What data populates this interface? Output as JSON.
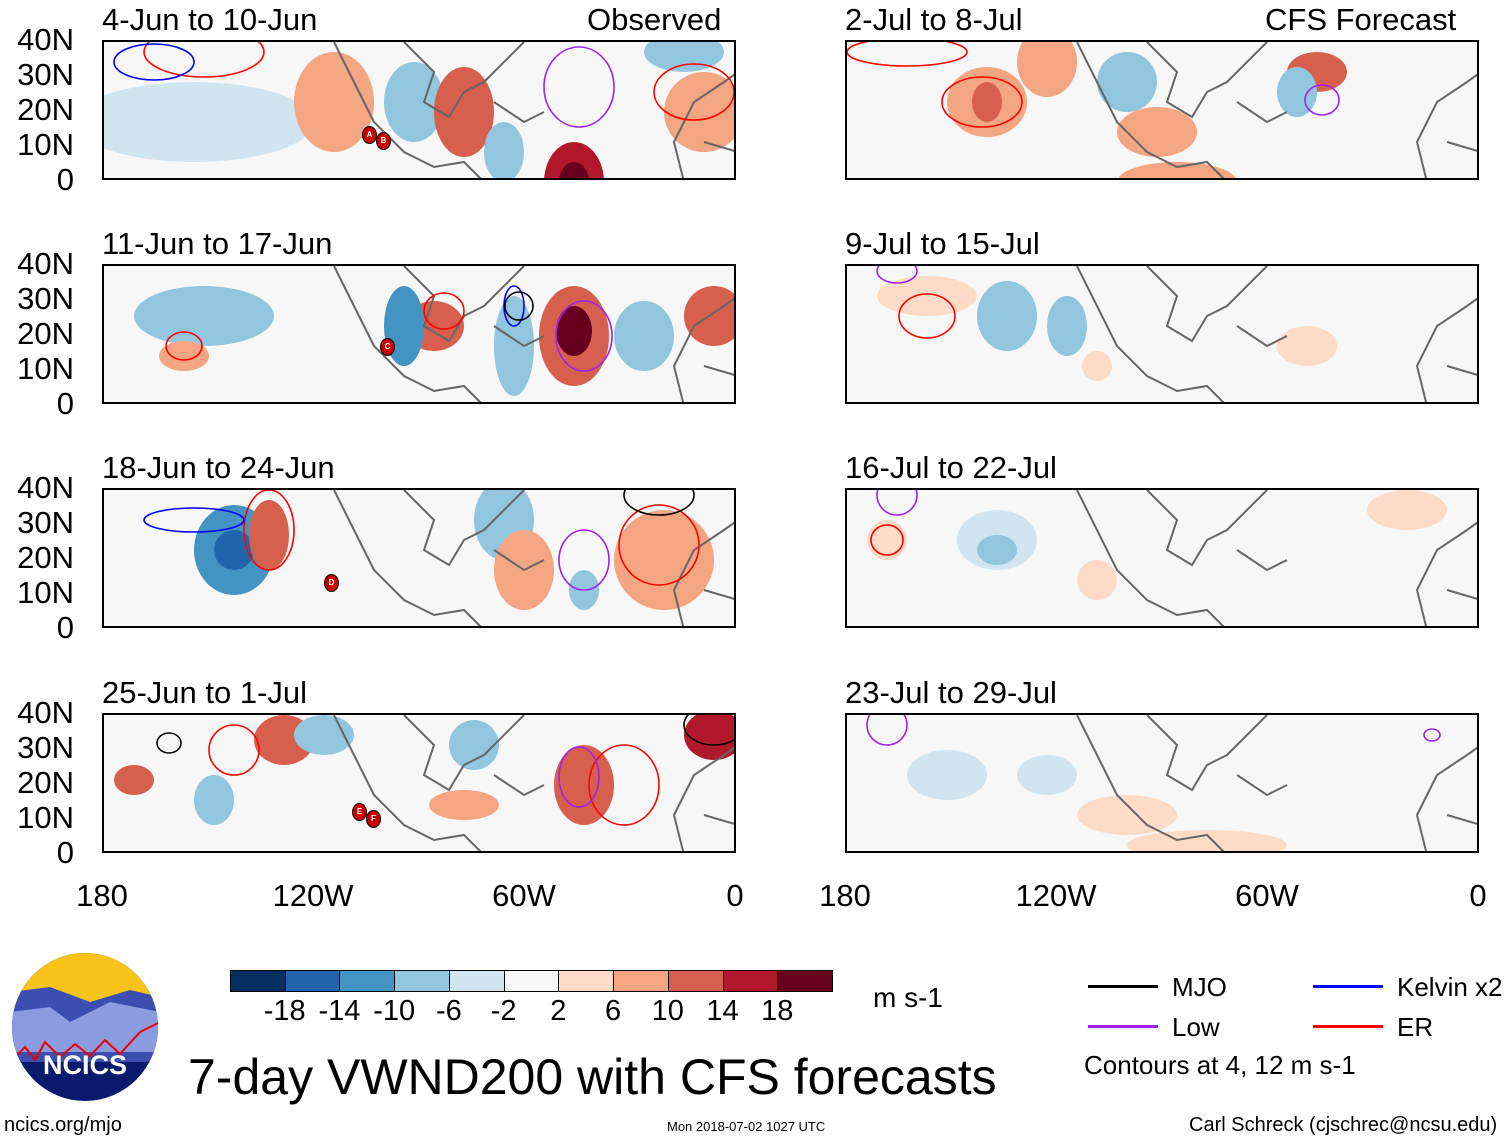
{
  "figure_title": "7-day VWND200 with CFS forecasts",
  "headers": {
    "observed": "Observed",
    "forecast": "CFS Forecast"
  },
  "panels_left": [
    {
      "title": "4-Jun to 10-Jun",
      "storms": [
        "A",
        "B"
      ]
    },
    {
      "title": "11-Jun to 17-Jun",
      "storms": [
        "C"
      ]
    },
    {
      "title": "18-Jun to 24-Jun",
      "storms": [
        "D"
      ]
    },
    {
      "title": "25-Jun to 1-Jul",
      "storms": [
        "E",
        "F"
      ]
    }
  ],
  "panels_right": [
    {
      "title": "2-Jul to 8-Jul"
    },
    {
      "title": "9-Jul to 15-Jul"
    },
    {
      "title": "16-Jul to 22-Jul"
    },
    {
      "title": "23-Jul to 29-Jul"
    }
  ],
  "y_axis_labels": [
    "40N",
    "30N",
    "20N",
    "10N",
    "0"
  ],
  "x_axis_labels": [
    "180",
    "120W",
    "60W",
    "0"
  ],
  "colorbar": {
    "colors": [
      "#053061",
      "#2166ac",
      "#4393c3",
      "#92c5de",
      "#d1e5f0",
      "#f7f7f7",
      "#fddbc7",
      "#f4a582",
      "#d6604d",
      "#b2182b",
      "#67001f"
    ],
    "tick_labels": [
      "-18",
      "-14",
      "-10",
      "-6",
      "-2",
      "2",
      "6",
      "10",
      "14",
      "18"
    ],
    "units": "m s-1"
  },
  "legend": {
    "items": [
      {
        "label": "MJO",
        "color": "#000000"
      },
      {
        "label": "Kelvin x2",
        "color": "#0000ff"
      },
      {
        "label": "Low",
        "color": "#a020f0"
      },
      {
        "label": "ER",
        "color": "#ff0000"
      }
    ],
    "note": "Contours at 4, 12 m s-1"
  },
  "logo": {
    "text": "NCICS"
  },
  "footer": {
    "url": "ncics.org/mjo",
    "timestamp": "Mon 2018-07-02 1027 UTC",
    "author": "Carl Schreck (cjschrec@ncsu.edu)"
  }
}
